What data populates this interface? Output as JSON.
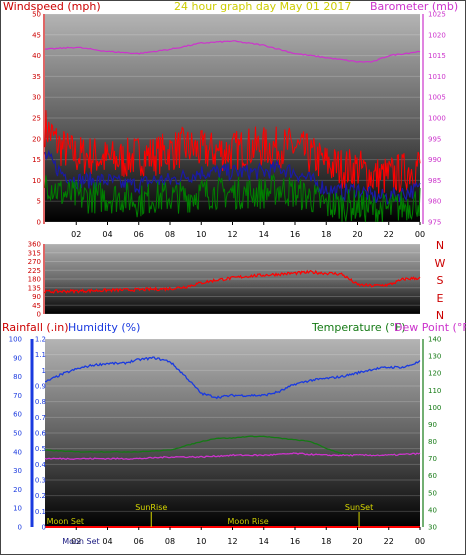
{
  "header": {
    "left_title": "Windspeed (mph)",
    "center_title": "24 hour graph day   May 01 2017",
    "right_title": "Barometer (mb)"
  },
  "colors": {
    "windspeed_title": "#cc0000",
    "barometer": "#cc33cc",
    "date": "#cccc00",
    "gust": "#ff0000",
    "avg": "#1a1aa6",
    "low": "#008000",
    "humidity": "#1a3adf",
    "temperature": "#157a15",
    "dewpoint": "#cc33cc",
    "rainfall": "#ff0000",
    "sun": "#d8d800",
    "moon": "#cccc00"
  },
  "x_ticks": [
    "02",
    "04",
    "06",
    "08",
    "10",
    "12",
    "14",
    "16",
    "18",
    "20",
    "22",
    "00"
  ],
  "chart_data": [
    {
      "type": "line",
      "id": "wind-barometer",
      "left_axis": {
        "ylim": [
          0,
          50
        ],
        "ticks": [
          "0",
          "5",
          "10",
          "15",
          "20",
          "25",
          "30",
          "35",
          "40",
          "45",
          "50"
        ]
      },
      "right_axis": {
        "ylim": [
          975,
          1025
        ],
        "ticks": [
          "975",
          "980",
          "985",
          "990",
          "995",
          "1000",
          "1005",
          "1010",
          "1015",
          "1020",
          "1025"
        ]
      },
      "xlim": [
        0,
        24
      ],
      "series": [
        {
          "name": "Barometer (mb)",
          "axis": "right",
          "x": [
            0,
            2,
            4,
            6,
            8,
            10,
            12,
            14,
            16,
            18,
            20,
            21,
            22,
            24
          ],
          "y": [
            1016.5,
            1017,
            1016,
            1015.5,
            1016.5,
            1018,
            1018.5,
            1017.5,
            1015.5,
            1014.5,
            1013.5,
            1013.5,
            1015,
            1016
          ]
        },
        {
          "role": "gust",
          "axis": "left",
          "x": [
            0,
            1,
            2,
            3,
            4,
            5,
            6,
            7,
            8,
            9,
            10,
            11,
            12,
            13,
            14,
            15,
            16,
            17,
            18,
            19,
            20,
            21,
            22,
            23,
            24
          ],
          "y": [
            23,
            18,
            16,
            16,
            15,
            15,
            16,
            16,
            17,
            18,
            17,
            17,
            17,
            18,
            18,
            18,
            18,
            16,
            14,
            13,
            13,
            11,
            11,
            12,
            14
          ]
        },
        {
          "role": "average",
          "axis": "left",
          "x": [
            0,
            1,
            2,
            3,
            4,
            5,
            6,
            7,
            8,
            9,
            10,
            11,
            12,
            13,
            14,
            15,
            16,
            17,
            18,
            19,
            20,
            21,
            22,
            23,
            24
          ],
          "y": [
            16,
            12,
            10,
            10,
            10,
            9,
            9,
            10,
            10,
            11,
            12,
            12,
            12,
            12,
            12,
            13,
            12,
            10,
            8,
            7,
            8,
            6,
            6,
            7,
            8
          ]
        },
        {
          "role": "low",
          "axis": "left",
          "x": [
            0,
            1,
            2,
            3,
            4,
            5,
            6,
            7,
            8,
            9,
            10,
            11,
            12,
            13,
            14,
            15,
            16,
            17,
            18,
            19,
            20,
            21,
            22,
            23,
            24
          ],
          "y": [
            10,
            7,
            6,
            6,
            6,
            6,
            5,
            6,
            6,
            6,
            7,
            7,
            7,
            7,
            7,
            8,
            7,
            6,
            4,
            4,
            4,
            3,
            3,
            4,
            5
          ]
        }
      ]
    },
    {
      "type": "line",
      "id": "wind-direction",
      "left_axis": {
        "ylim": [
          0,
          360
        ],
        "ticks": [
          "0",
          "45",
          "90",
          "135",
          "180",
          "225",
          "270",
          "315",
          "360"
        ]
      },
      "compass_labels": [
        "N",
        "W",
        "S",
        "E",
        "N"
      ],
      "xlim": [
        0,
        24
      ],
      "series": [
        {
          "role": "direction",
          "x": [
            0,
            2,
            4,
            6,
            8,
            9,
            10,
            11,
            12,
            13,
            14,
            15,
            16,
            17,
            18,
            19,
            20,
            21,
            22,
            23,
            24
          ],
          "y": [
            115,
            118,
            122,
            125,
            130,
            140,
            160,
            175,
            185,
            195,
            200,
            205,
            210,
            215,
            210,
            205,
            150,
            145,
            150,
            180,
            185
          ]
        }
      ]
    },
    {
      "type": "line",
      "id": "rain-humidity-temp",
      "left_axis": {
        "ylim": [
          0,
          1.2
        ],
        "ticks": [
          "0",
          "0.1",
          "0.2",
          "0.3",
          "0.4",
          "0.5",
          "0.6",
          "0.7",
          "0.8",
          "0.9",
          "1",
          "1.1",
          "1.2"
        ]
      },
      "humidity_axis": {
        "ylim": [
          0,
          100
        ],
        "ticks": [
          "0",
          "10",
          "20",
          "30",
          "40",
          "50",
          "60",
          "70",
          "80",
          "90",
          "100"
        ]
      },
      "right_axis": {
        "ylim": [
          30,
          140
        ],
        "ticks": [
          "30",
          "40",
          "50",
          "60",
          "70",
          "80",
          "90",
          "100",
          "110",
          "120",
          "130",
          "140"
        ]
      },
      "left_title": "Rainfall (.in)",
      "humidity_title": "Humidity (%)",
      "right_title_temp": "Temperature (°F)",
      "right_title_dew": "Dew Point (°F)",
      "xlim": [
        0,
        24
      ],
      "series": [
        {
          "name": "Humidity (%)",
          "axis": "humidity",
          "x": [
            0,
            1,
            2,
            3,
            4,
            5,
            6,
            7,
            8,
            9,
            10,
            11,
            12,
            13,
            14,
            15,
            16,
            17,
            18,
            19,
            20,
            21,
            22,
            23,
            24
          ],
          "y": [
            77,
            81,
            84,
            86,
            87,
            87,
            89,
            90,
            88,
            80,
            71,
            69,
            70,
            70,
            70,
            72,
            76,
            78,
            79,
            80,
            82,
            84,
            85,
            85,
            88
          ]
        },
        {
          "name": "Temperature (°F)",
          "axis": "right",
          "x": [
            0,
            2,
            4,
            6,
            8,
            10,
            11,
            12,
            13,
            14,
            15,
            16,
            17,
            18,
            19,
            20,
            21,
            22,
            24
          ],
          "y": [
            75,
            74,
            74,
            74,
            75,
            80,
            82,
            82,
            83,
            83,
            82,
            81,
            80,
            76,
            73,
            72,
            72,
            72,
            73
          ]
        },
        {
          "name": "Dew Point (°F)",
          "axis": "right",
          "x": [
            0,
            2,
            4,
            6,
            8,
            10,
            12,
            14,
            16,
            18,
            20,
            22,
            24
          ],
          "y": [
            70,
            70,
            70,
            70,
            71,
            71,
            72,
            72,
            73,
            72,
            72,
            72,
            73
          ]
        },
        {
          "name": "Rainfall (.in)",
          "axis": "left",
          "x": [
            0,
            24
          ],
          "y": [
            0,
            0
          ]
        }
      ],
      "events": [
        {
          "label": "Moon Set",
          "x": 1.3,
          "row": "bottom"
        },
        {
          "label": "Moon Set",
          "x": 2.3,
          "row": "axis"
        },
        {
          "label": "SunRise",
          "x": 6.8,
          "row": "top"
        },
        {
          "label": "Moon Rise",
          "x": 13.0,
          "row": "bottom"
        },
        {
          "label": "SunSet",
          "x": 20.1,
          "row": "top"
        }
      ]
    }
  ]
}
